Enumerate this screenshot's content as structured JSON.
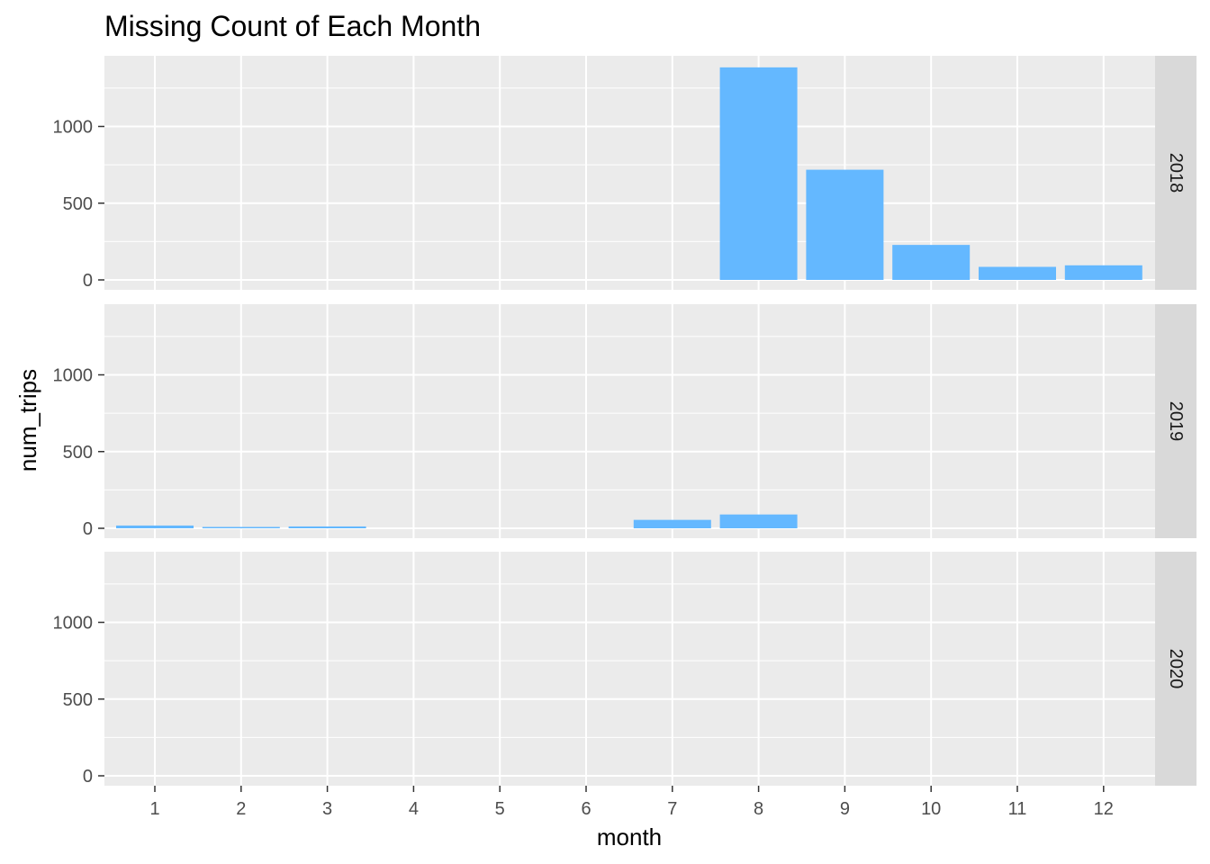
{
  "chart_data": {
    "type": "bar",
    "title": "Missing Count of Each Month",
    "xlabel": "month",
    "ylabel": "num_trips",
    "categories": [
      "1",
      "2",
      "3",
      "4",
      "5",
      "6",
      "7",
      "8",
      "9",
      "10",
      "11",
      "12"
    ],
    "ylim": [
      0,
      1400
    ],
    "yticks": [
      0,
      500,
      1000
    ],
    "grid": true,
    "facet": "rows",
    "bar_color": "#64B8FF",
    "panel_bg": "#EBEBEB",
    "strip_bg": "#D9D9D9",
    "panels": [
      {
        "label": "2018",
        "values": [
          0,
          0,
          0,
          0,
          0,
          0,
          0,
          1385,
          718,
          228,
          85,
          95
        ]
      },
      {
        "label": "2019",
        "values": [
          18,
          8,
          12,
          0,
          0,
          0,
          55,
          90,
          0,
          0,
          0,
          0
        ]
      },
      {
        "label": "2020",
        "values": [
          0,
          0,
          0,
          0,
          0,
          0,
          0,
          0,
          0,
          0,
          0,
          0
        ]
      }
    ]
  }
}
